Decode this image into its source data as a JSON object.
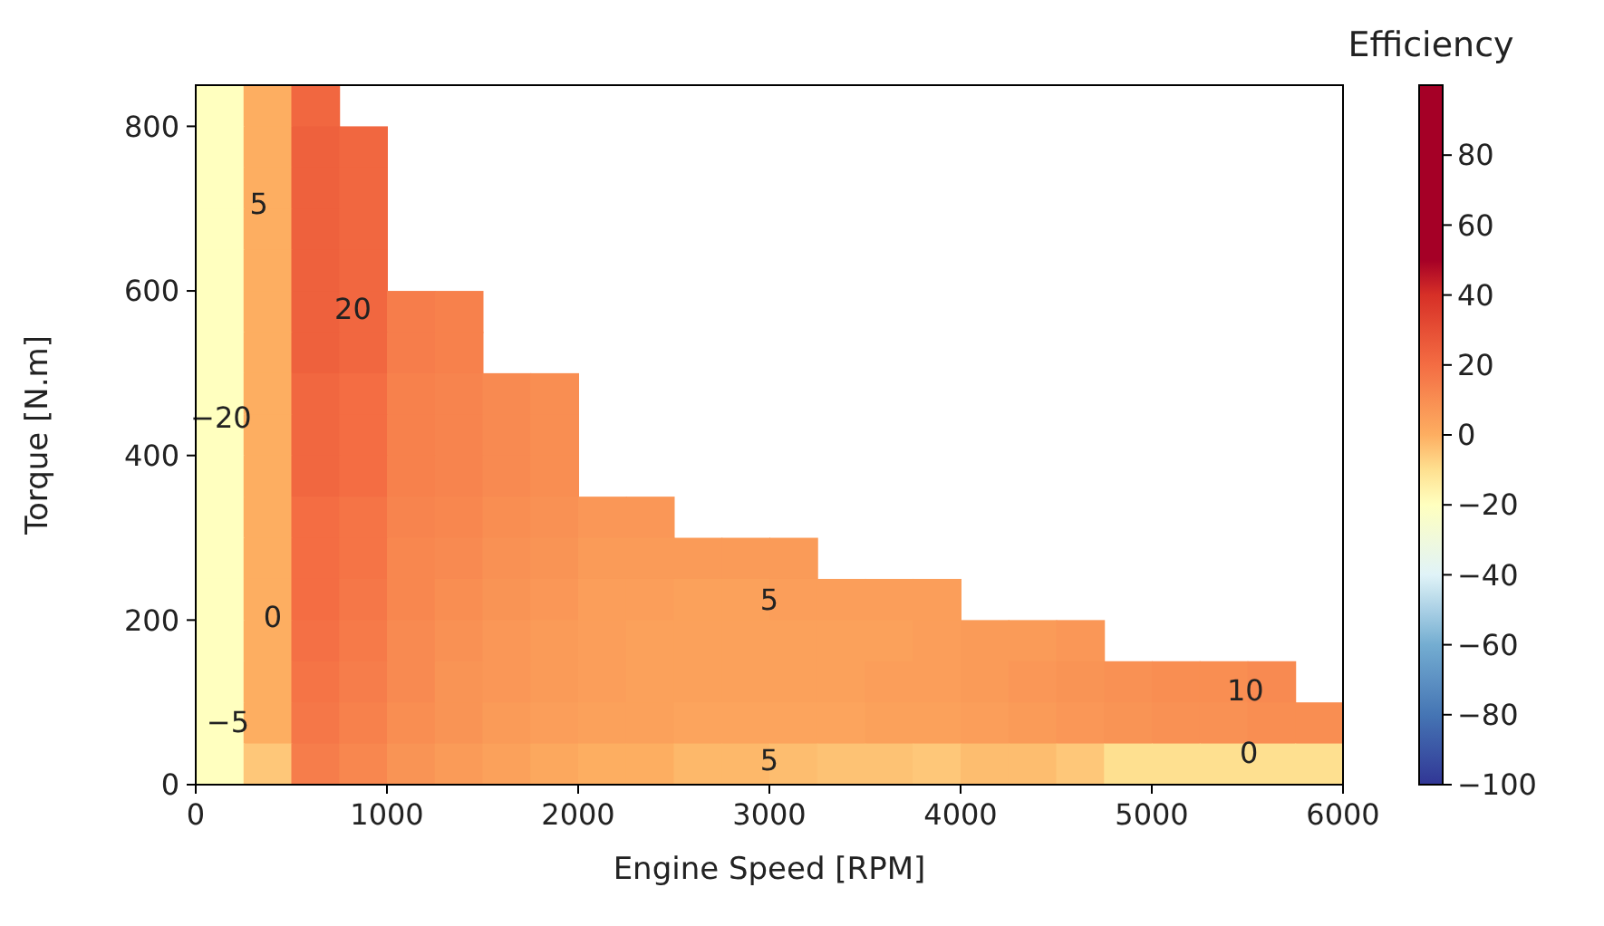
{
  "chart_data": {
    "type": "heatmap",
    "xlabel": "Engine Speed [RPM]",
    "ylabel": "Torque [N.m]",
    "clabel": "Efficiency",
    "xlim": [
      0,
      6000
    ],
    "xticks": [
      0,
      1000,
      2000,
      3000,
      4000,
      5000,
      6000
    ],
    "ylim": [
      0,
      850
    ],
    "yticks": [
      0,
      200,
      400,
      600,
      800
    ],
    "clim": [
      -100,
      100
    ],
    "cticks": [
      {
        "value": -100,
        "label": "−100"
      },
      {
        "value": -80,
        "label": "−80"
      },
      {
        "value": -60,
        "label": "−60"
      },
      {
        "value": -40,
        "label": "−40"
      },
      {
        "value": -20,
        "label": "−20"
      },
      0,
      20,
      40,
      60,
      80
    ],
    "cells": [
      [
        -20,
        0,
        22,
        null,
        null,
        null,
        null,
        null,
        null,
        null,
        null,
        null,
        null,
        null,
        null,
        null,
        null,
        null,
        null,
        null,
        null,
        null,
        null,
        null
      ],
      [
        -20,
        0,
        24,
        22,
        null,
        null,
        null,
        null,
        null,
        null,
        null,
        null,
        null,
        null,
        null,
        null,
        null,
        null,
        null,
        null,
        null,
        null,
        null,
        null
      ],
      [
        -20,
        0,
        24,
        22,
        null,
        null,
        null,
        null,
        null,
        null,
        null,
        null,
        null,
        null,
        null,
        null,
        null,
        null,
        null,
        null,
        null,
        null,
        null,
        null
      ],
      [
        -20,
        0,
        24,
        22,
        null,
        null,
        null,
        null,
        null,
        null,
        null,
        null,
        null,
        null,
        null,
        null,
        null,
        null,
        null,
        null,
        null,
        null,
        null,
        null
      ],
      [
        -20,
        0,
        24,
        22,
        null,
        null,
        null,
        null,
        null,
        null,
        null,
        null,
        null,
        null,
        null,
        null,
        null,
        null,
        null,
        null,
        null,
        null,
        null,
        null
      ],
      [
        -20,
        0,
        24,
        22,
        15,
        14,
        null,
        null,
        null,
        null,
        null,
        null,
        null,
        null,
        null,
        null,
        null,
        null,
        null,
        null,
        null,
        null,
        null,
        null
      ],
      [
        -20,
        0,
        24,
        22,
        15,
        14,
        null,
        null,
        null,
        null,
        null,
        null,
        null,
        null,
        null,
        null,
        null,
        null,
        null,
        null,
        null,
        null,
        null,
        null
      ],
      [
        -20,
        0,
        22,
        20,
        14,
        13,
        11,
        10,
        null,
        null,
        null,
        null,
        null,
        null,
        null,
        null,
        null,
        null,
        null,
        null,
        null,
        null,
        null,
        null
      ],
      [
        -20,
        0,
        22,
        20,
        14,
        13,
        11,
        10,
        null,
        null,
        null,
        null,
        null,
        null,
        null,
        null,
        null,
        null,
        null,
        null,
        null,
        null,
        null,
        null
      ],
      [
        -20,
        0,
        22,
        20,
        14,
        13,
        11,
        10,
        null,
        null,
        null,
        null,
        null,
        null,
        null,
        null,
        null,
        null,
        null,
        null,
        null,
        null,
        null,
        null
      ],
      [
        -20,
        0,
        20,
        18,
        13,
        12,
        10,
        9,
        7,
        7,
        null,
        null,
        null,
        null,
        null,
        null,
        null,
        null,
        null,
        null,
        null,
        null,
        null,
        null
      ],
      [
        -20,
        0,
        20,
        18,
        12,
        11,
        9,
        8,
        6,
        6,
        6,
        6,
        6,
        null,
        null,
        null,
        null,
        null,
        null,
        null,
        null,
        null,
        null,
        null
      ],
      [
        -20,
        0,
        20,
        17,
        12,
        10,
        8,
        7,
        5,
        5,
        4,
        4,
        5,
        5,
        5,
        5,
        null,
        null,
        null,
        null,
        null,
        null,
        null,
        null
      ],
      [
        -20,
        0,
        19,
        16,
        11,
        9,
        7,
        6,
        5,
        4,
        4,
        4,
        4,
        4,
        4,
        5,
        6,
        6,
        7,
        null,
        null,
        null,
        null,
        null
      ],
      [
        -20,
        0,
        18,
        15,
        11,
        8,
        7,
        6,
        5,
        4,
        4,
        4,
        4,
        4,
        5,
        5,
        6,
        7,
        8,
        9,
        10,
        10,
        11,
        null
      ],
      [
        -20,
        0,
        17,
        14,
        10,
        8,
        6,
        5,
        4,
        4,
        3,
        3,
        3,
        3,
        4,
        4,
        5,
        6,
        7,
        8,
        9,
        9,
        10,
        10
      ],
      [
        -20,
        -5,
        15,
        12,
        8,
        6,
        4,
        2,
        0,
        0,
        -2,
        -2,
        -3,
        -4,
        -4,
        -5,
        -3,
        -3,
        -5,
        -10,
        -10,
        -10,
        -10,
        -10
      ]
    ],
    "annotations": [
      "20",
      "−20",
      "5",
      "0",
      "−5",
      "5",
      "5",
      "10",
      "0"
    ]
  }
}
